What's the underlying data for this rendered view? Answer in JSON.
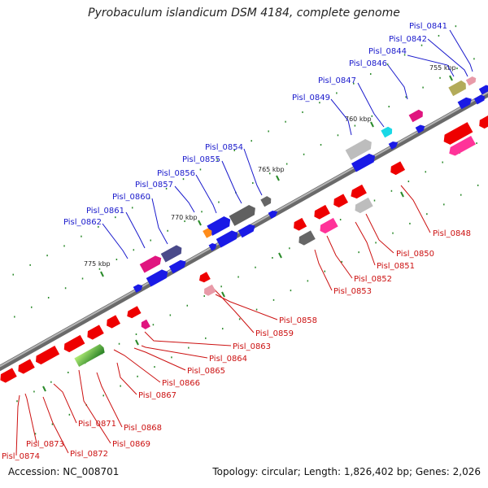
{
  "title": "Pyrobaculum islandicum DSM 4184, complete genome",
  "footer": {
    "accession": "Accession: NC_008701",
    "topology": "Topology: circular; Length: 1,826,402 bp; Genes: 2,026"
  },
  "scale_labels": [
    "755 kbp",
    "760 kbp",
    "765 kbp",
    "770 kbp",
    "775 kbp"
  ],
  "colors": {
    "forward_label": "#1a1acc",
    "reverse_label": "#cc1111",
    "backbone": "#8a8a8a",
    "tick": "#2a8a2a"
  },
  "forward_labels": [
    "Pisl_0841",
    "Pisl_0842",
    "Pisl_0844",
    "Pisl_0846",
    "Pisl_0847",
    "Pisl_0849",
    "Pisl_0854",
    "Pisl_0855",
    "Pisl_0856",
    "Pisl_0857",
    "Pisl_0860",
    "Pisl_0861",
    "Pisl_0862"
  ],
  "reverse_labels": [
    "Pisl_0848",
    "Pisl_0850",
    "Pisl_0851",
    "Pisl_0852",
    "Pisl_0853",
    "Pisl_0858",
    "Pisl_0859",
    "Pisl_0863",
    "Pisl_0864",
    "Pisl_0865",
    "Pisl_0866",
    "Pisl_0867",
    "Pisl_0868",
    "Pisl_0869",
    "Pisl_0871",
    "Pisl_0872",
    "Pisl_0873",
    "Pisl_0874"
  ]
}
